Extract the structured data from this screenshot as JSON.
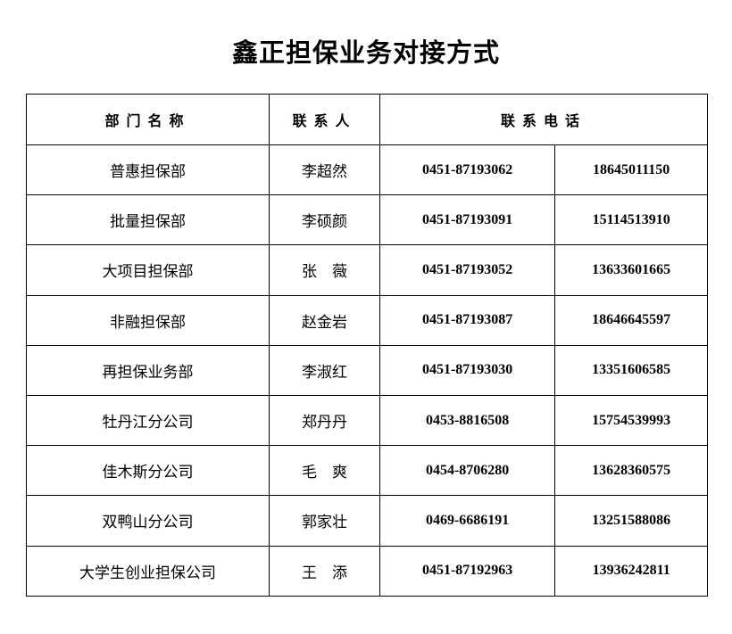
{
  "title": "鑫正担保业务对接方式",
  "headers": {
    "department": "部门名称",
    "contact": "联系人",
    "phone": "联系电话"
  },
  "rows": [
    {
      "department": "普惠担保部",
      "contact": "李超然",
      "landline": "0451-87193062",
      "mobile": "18645011150"
    },
    {
      "department": "批量担保部",
      "contact": "李硕颜",
      "landline": "0451-87193091",
      "mobile": "15114513910"
    },
    {
      "department": "大项目担保部",
      "contact": "张　薇",
      "landline": "0451-87193052",
      "mobile": "13633601665"
    },
    {
      "department": "非融担保部",
      "contact": "赵金岩",
      "landline": "0451-87193087",
      "mobile": "18646645597"
    },
    {
      "department": "再担保业务部",
      "contact": "李淑红",
      "landline": "0451-87193030",
      "mobile": "13351606585"
    },
    {
      "department": "牡丹江分公司",
      "contact": "郑丹丹",
      "landline": "0453-8816508",
      "mobile": "15754539993"
    },
    {
      "department": "佳木斯分公司",
      "contact": "毛　爽",
      "landline": "0454-8706280",
      "mobile": "13628360575"
    },
    {
      "department": "双鸭山分公司",
      "contact": "郭家壮",
      "landline": "0469-6686191",
      "mobile": "13251588086"
    },
    {
      "department": "大学生创业担保公司",
      "contact": "王　添",
      "landline": "0451-87192963",
      "mobile": "13936242811"
    }
  ]
}
